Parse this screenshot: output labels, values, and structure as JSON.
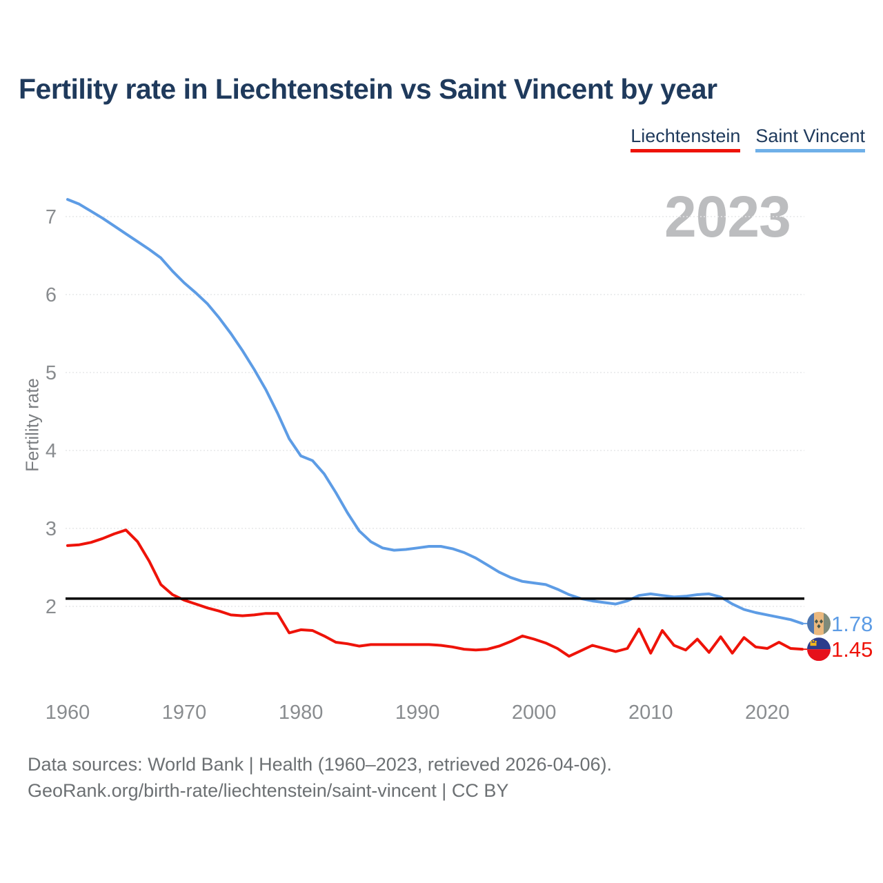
{
  "title": "Fertility rate in Liechtenstein vs Saint Vincent by year",
  "watermark": "2023",
  "legend": [
    {
      "label": "Liechtenstein",
      "color": "#ee1309"
    },
    {
      "label": "Saint Vincent",
      "color": "#6fb0e8"
    }
  ],
  "y_axis": {
    "label": "Fertility rate",
    "ticks": [
      7,
      6,
      5,
      4,
      3,
      2
    ]
  },
  "x_axis": {
    "ticks": [
      1960,
      1970,
      1980,
      1990,
      2000,
      2010,
      2020
    ]
  },
  "reference_line": {
    "value": 2.1,
    "color": "#000000"
  },
  "end_labels": [
    {
      "series": "Saint Vincent",
      "value": "1.78",
      "color": "#5d9ce5",
      "flag": "saint-vincent-flag"
    },
    {
      "series": "Liechtenstein",
      "value": "1.45",
      "color": "#ee1309",
      "flag": "liechtenstein-flag"
    }
  ],
  "footer": {
    "line1": "Data sources: World Bank | Health (1960–2023, retrieved 2026-04-06).",
    "line2": "GeoRank.org/birth-rate/liechtenstein/saint-vincent | CC BY"
  },
  "chart_data": {
    "type": "line",
    "title": "Fertility rate in Liechtenstein vs Saint Vincent by year",
    "xlabel": "",
    "ylabel": "Fertility rate",
    "xlim": [
      1960,
      2023
    ],
    "ylim": [
      1.1,
      7.45
    ],
    "grid": "horizontal-dashed",
    "legend_position": "top-right",
    "x": [
      1960,
      1961,
      1962,
      1963,
      1964,
      1965,
      1966,
      1967,
      1968,
      1969,
      1970,
      1971,
      1972,
      1973,
      1974,
      1975,
      1976,
      1977,
      1978,
      1979,
      1980,
      1981,
      1982,
      1983,
      1984,
      1985,
      1986,
      1987,
      1988,
      1989,
      1990,
      1991,
      1992,
      1993,
      1994,
      1995,
      1996,
      1997,
      1998,
      1999,
      2000,
      2001,
      2002,
      2003,
      2004,
      2005,
      2006,
      2007,
      2008,
      2009,
      2010,
      2011,
      2012,
      2013,
      2014,
      2015,
      2016,
      2017,
      2018,
      2019,
      2020,
      2021,
      2022,
      2023
    ],
    "series": [
      {
        "name": "Saint Vincent",
        "color": "#5d9ce5",
        "values": [
          7.22,
          7.16,
          7.07,
          6.98,
          6.88,
          6.78,
          6.68,
          6.58,
          6.47,
          6.3,
          6.15,
          6.02,
          5.88,
          5.7,
          5.5,
          5.28,
          5.04,
          4.78,
          4.48,
          4.15,
          3.93,
          3.87,
          3.7,
          3.46,
          3.2,
          2.97,
          2.83,
          2.75,
          2.72,
          2.73,
          2.75,
          2.77,
          2.77,
          2.74,
          2.69,
          2.62,
          2.53,
          2.44,
          2.37,
          2.32,
          2.3,
          2.28,
          2.22,
          2.15,
          2.1,
          2.07,
          2.05,
          2.03,
          2.07,
          2.14,
          2.16,
          2.14,
          2.12,
          2.13,
          2.15,
          2.16,
          2.12,
          2.03,
          1.96,
          1.92,
          1.89,
          1.86,
          1.83,
          1.78
        ]
      },
      {
        "name": "Liechtenstein",
        "color": "#ee1309",
        "values": [
          2.78,
          2.79,
          2.82,
          2.87,
          2.93,
          2.98,
          2.83,
          2.58,
          2.28,
          2.15,
          2.08,
          2.03,
          1.98,
          1.94,
          1.89,
          1.88,
          1.89,
          1.91,
          1.91,
          1.66,
          1.7,
          1.69,
          1.62,
          1.54,
          1.52,
          1.49,
          1.51,
          1.51,
          1.51,
          1.51,
          1.51,
          1.51,
          1.5,
          1.48,
          1.45,
          1.44,
          1.45,
          1.49,
          1.55,
          1.62,
          1.58,
          1.53,
          1.46,
          1.36,
          1.43,
          1.5,
          1.46,
          1.42,
          1.46,
          1.71,
          1.4,
          1.69,
          1.5,
          1.44,
          1.58,
          1.41,
          1.61,
          1.4,
          1.6,
          1.48,
          1.46,
          1.54,
          1.46,
          1.45
        ]
      }
    ]
  }
}
